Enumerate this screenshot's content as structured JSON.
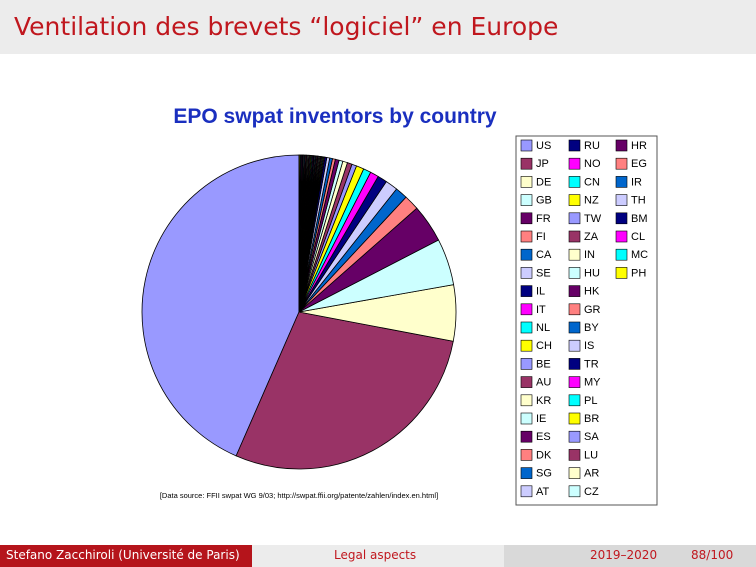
{
  "slide": {
    "title": "Ventilation des brevets “logiciel” en Europe"
  },
  "footer": {
    "author": "Stefano Zacchiroli  (Université de Paris)",
    "section": "Legal aspects",
    "year": "2019–2020",
    "page": "88/100"
  },
  "chart_data": {
    "type": "pie",
    "title": "EPO swpat inventors  by country",
    "source_note": "[Data source: FFII swpat WG 9/03;  http://swpat.ffii.org/patente/zahlen/index.en.html]",
    "title_color": "#1a2fbf",
    "legend_position": "right",
    "start_angle_deg": 0,
    "direction": "counterclockwise",
    "slices": [
      {
        "label": "US",
        "value": 44.4,
        "color": "#9999ff"
      },
      {
        "label": "JP",
        "value": 29.2,
        "color": "#993366"
      },
      {
        "label": "DE",
        "value": 5.9,
        "color": "#ffffcc"
      },
      {
        "label": "GB",
        "value": 4.9,
        "color": "#ccffff"
      },
      {
        "label": "FR",
        "value": 4.0,
        "color": "#660066"
      },
      {
        "label": "FI",
        "value": 1.6,
        "color": "#ff8080"
      },
      {
        "label": "CA",
        "value": 1.3,
        "color": "#0066cc"
      },
      {
        "label": "SE",
        "value": 1.3,
        "color": "#ccccff"
      },
      {
        "label": "IL",
        "value": 1.0,
        "color": "#000080"
      },
      {
        "label": "IT",
        "value": 0.9,
        "color": "#ff00ff"
      },
      {
        "label": "NL",
        "value": 0.8,
        "color": "#00ffff"
      },
      {
        "label": "CH",
        "value": 0.8,
        "color": "#ffff00"
      },
      {
        "label": "BE",
        "value": 0.5,
        "color": "#9999ff"
      },
      {
        "label": "AU",
        "value": 0.5,
        "color": "#993366"
      },
      {
        "label": "KR",
        "value": 0.5,
        "color": "#ffffcc"
      },
      {
        "label": "IE",
        "value": 0.4,
        "color": "#ccffff"
      },
      {
        "label": "ES",
        "value": 0.4,
        "color": "#660066"
      },
      {
        "label": "DK",
        "value": 0.3,
        "color": "#ff8080"
      },
      {
        "label": "SG",
        "value": 0.3,
        "color": "#0066cc"
      },
      {
        "label": "AT",
        "value": 0.3,
        "color": "#ccccff"
      },
      {
        "label": "RU",
        "value": 0.2,
        "color": "#000080"
      },
      {
        "label": "NO",
        "value": 0.1,
        "color": "#ff00ff"
      },
      {
        "label": "CN",
        "value": 0.1,
        "color": "#00ffff"
      },
      {
        "label": "NZ",
        "value": 0.1,
        "color": "#ffff00"
      },
      {
        "label": "TW",
        "value": 0.1,
        "color": "#9999ff"
      },
      {
        "label": "ZA",
        "value": 0.1,
        "color": "#993366"
      },
      {
        "label": "IN",
        "value": 0.1,
        "color": "#ffffcc"
      },
      {
        "label": "HU",
        "value": 0.1,
        "color": "#ccffff"
      },
      {
        "label": "HK",
        "value": 0.1,
        "color": "#660066"
      },
      {
        "label": "GR",
        "value": 0.1,
        "color": "#ff8080"
      },
      {
        "label": "BY",
        "value": 0.1,
        "color": "#0066cc"
      },
      {
        "label": "IS",
        "value": 0.1,
        "color": "#ccccff"
      },
      {
        "label": "TR",
        "value": 0.1,
        "color": "#000080"
      },
      {
        "label": "MY",
        "value": 0.1,
        "color": "#ff00ff"
      },
      {
        "label": "PL",
        "value": 0.1,
        "color": "#00ffff"
      },
      {
        "label": "BR",
        "value": 0.1,
        "color": "#ffff00"
      },
      {
        "label": "SA",
        "value": 0.1,
        "color": "#9999ff"
      },
      {
        "label": "LU",
        "value": 0.1,
        "color": "#993366"
      },
      {
        "label": "AR",
        "value": 0.1,
        "color": "#ffffcc"
      },
      {
        "label": "CZ",
        "value": 0.1,
        "color": "#ccffff"
      },
      {
        "label": "HR",
        "value": 0.1,
        "color": "#660066"
      },
      {
        "label": "EG",
        "value": 0.1,
        "color": "#ff8080"
      },
      {
        "label": "IR",
        "value": 0.1,
        "color": "#0066cc"
      },
      {
        "label": "TH",
        "value": 0.1,
        "color": "#ccccff"
      },
      {
        "label": "BM",
        "value": 0.1,
        "color": "#000080"
      },
      {
        "label": "CL",
        "value": 0.1,
        "color": "#ff00ff"
      },
      {
        "label": "MC",
        "value": 0.1,
        "color": "#00ffff"
      },
      {
        "label": "PH",
        "value": 0.1,
        "color": "#ffff00"
      }
    ]
  }
}
